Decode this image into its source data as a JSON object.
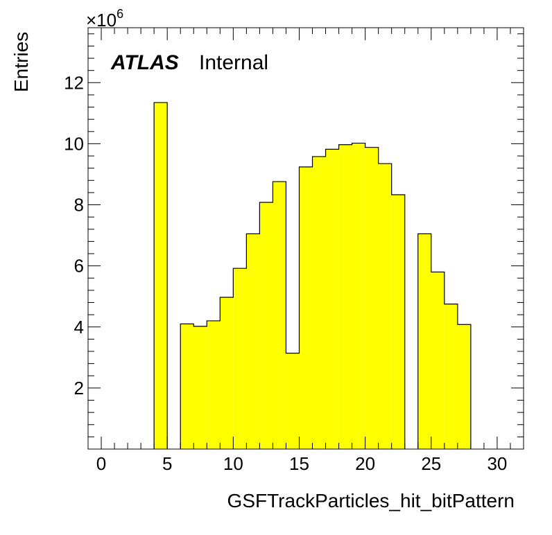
{
  "chart_data": {
    "type": "bar",
    "title": "",
    "xlabel": "GSFTrackParticles_hit_bitPattern",
    "ylabel": "Entries",
    "y_multiplier": "×10",
    "y_multiplier_exponent": "6",
    "atlas_label": "ATLAS",
    "atlas_sublabel": "Internal",
    "xlim": [
      -1,
      32
    ],
    "ylim": [
      0,
      13.8
    ],
    "x_ticks": [
      0,
      5,
      10,
      15,
      20,
      25,
      30
    ],
    "y_ticks": [
      2,
      4,
      6,
      8,
      10,
      12
    ],
    "bin_width": 1,
    "bins": [
      {
        "low": 4,
        "high": 5,
        "value": 11.35
      },
      {
        "low": 6,
        "high": 7,
        "value": 4.1
      },
      {
        "low": 7,
        "high": 8,
        "value": 4.02
      },
      {
        "low": 8,
        "high": 9,
        "value": 4.2
      },
      {
        "low": 9,
        "high": 10,
        "value": 4.97
      },
      {
        "low": 10,
        "high": 11,
        "value": 5.92
      },
      {
        "low": 11,
        "high": 12,
        "value": 7.05
      },
      {
        "low": 12,
        "high": 13,
        "value": 8.08
      },
      {
        "low": 13,
        "high": 14,
        "value": 8.76
      },
      {
        "low": 14,
        "high": 15,
        "value": 3.14
      },
      {
        "low": 15,
        "high": 16,
        "value": 9.24
      },
      {
        "low": 16,
        "high": 17,
        "value": 9.58
      },
      {
        "low": 17,
        "high": 18,
        "value": 9.82
      },
      {
        "low": 18,
        "high": 19,
        "value": 9.97
      },
      {
        "low": 19,
        "high": 20,
        "value": 10.02
      },
      {
        "low": 20,
        "high": 21,
        "value": 9.88
      },
      {
        "low": 21,
        "high": 22,
        "value": 9.35
      },
      {
        "low": 22,
        "high": 23,
        "value": 8.33
      },
      {
        "low": 24,
        "high": 25,
        "value": 7.05
      },
      {
        "low": 25,
        "high": 26,
        "value": 5.8
      },
      {
        "low": 26,
        "high": 27,
        "value": 4.75
      },
      {
        "low": 27,
        "high": 28,
        "value": 4.08
      }
    ],
    "fill_color": "#ffff00",
    "line_color": "#000000",
    "grid": false
  }
}
